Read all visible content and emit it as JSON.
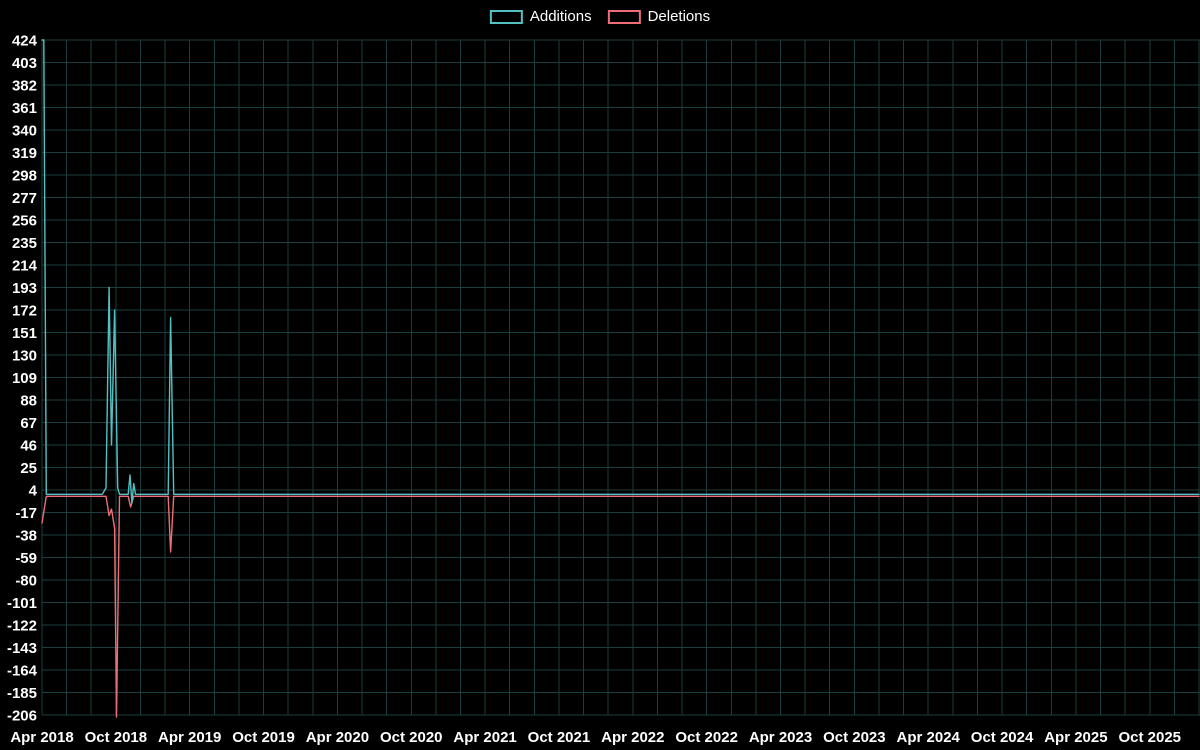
{
  "colors": {
    "background": "#000000",
    "grid": "#1b3e40",
    "axis_text": "#ffffff",
    "additions": "#53c1c4",
    "deletions": "#ee6e78"
  },
  "legend": {
    "items": [
      {
        "label": "Additions"
      },
      {
        "label": "Deletions"
      }
    ]
  },
  "chart_data": {
    "type": "line",
    "title": "",
    "xlabel": "",
    "ylabel": "",
    "grid": true,
    "legend_position": "top-center",
    "ylim": [
      -206,
      424
    ],
    "y_ticks": [
      424,
      403,
      382,
      361,
      340,
      319,
      298,
      277,
      256,
      235,
      214,
      193,
      172,
      151,
      130,
      109,
      88,
      67,
      46,
      25,
      4,
      -17,
      -38,
      -59,
      -80,
      -101,
      -122,
      -143,
      -164,
      -185,
      -206
    ],
    "x_tick_labels": [
      "Apr 2018",
      "Oct 2018",
      "Apr 2019",
      "Oct 2019",
      "Apr 2020",
      "Oct 2020",
      "Apr 2021",
      "Oct 2021",
      "Apr 2022",
      "Oct 2022",
      "Apr 2023",
      "Oct 2023",
      "Apr 2024",
      "Oct 2024",
      "Apr 2025",
      "Oct 2025"
    ],
    "x_tick_months": [
      0,
      6,
      12,
      18,
      24,
      30,
      36,
      42,
      48,
      54,
      60,
      66,
      72,
      78,
      84,
      90
    ],
    "x_months_total": 94,
    "x_grid_step_months": 2,
    "series": [
      {
        "name": "Additions",
        "color": "#53c1c4",
        "points": [
          [
            0,
            424
          ],
          [
            0.15,
            424
          ],
          [
            0.35,
            0
          ],
          [
            4.9,
            0
          ],
          [
            5.2,
            6
          ],
          [
            5.45,
            193
          ],
          [
            5.65,
            46
          ],
          [
            5.9,
            172
          ],
          [
            6.15,
            6
          ],
          [
            6.3,
            0
          ],
          [
            7.0,
            0
          ],
          [
            7.15,
            18
          ],
          [
            7.3,
            -8
          ],
          [
            7.45,
            10
          ],
          [
            7.6,
            0
          ],
          [
            10.25,
            0
          ],
          [
            10.45,
            165
          ],
          [
            10.7,
            0
          ],
          [
            94,
            0
          ]
        ]
      },
      {
        "name": "Deletions",
        "color": "#ee6e78",
        "points": [
          [
            0,
            -25
          ],
          [
            0.35,
            0
          ],
          [
            5.2,
            0
          ],
          [
            5.45,
            -18
          ],
          [
            5.65,
            -12
          ],
          [
            5.9,
            -30
          ],
          [
            6.05,
            -206
          ],
          [
            6.3,
            0
          ],
          [
            7.0,
            0
          ],
          [
            7.2,
            -10
          ],
          [
            7.45,
            0
          ],
          [
            10.25,
            0
          ],
          [
            10.45,
            -52
          ],
          [
            10.7,
            0
          ],
          [
            94,
            0
          ]
        ]
      }
    ]
  }
}
